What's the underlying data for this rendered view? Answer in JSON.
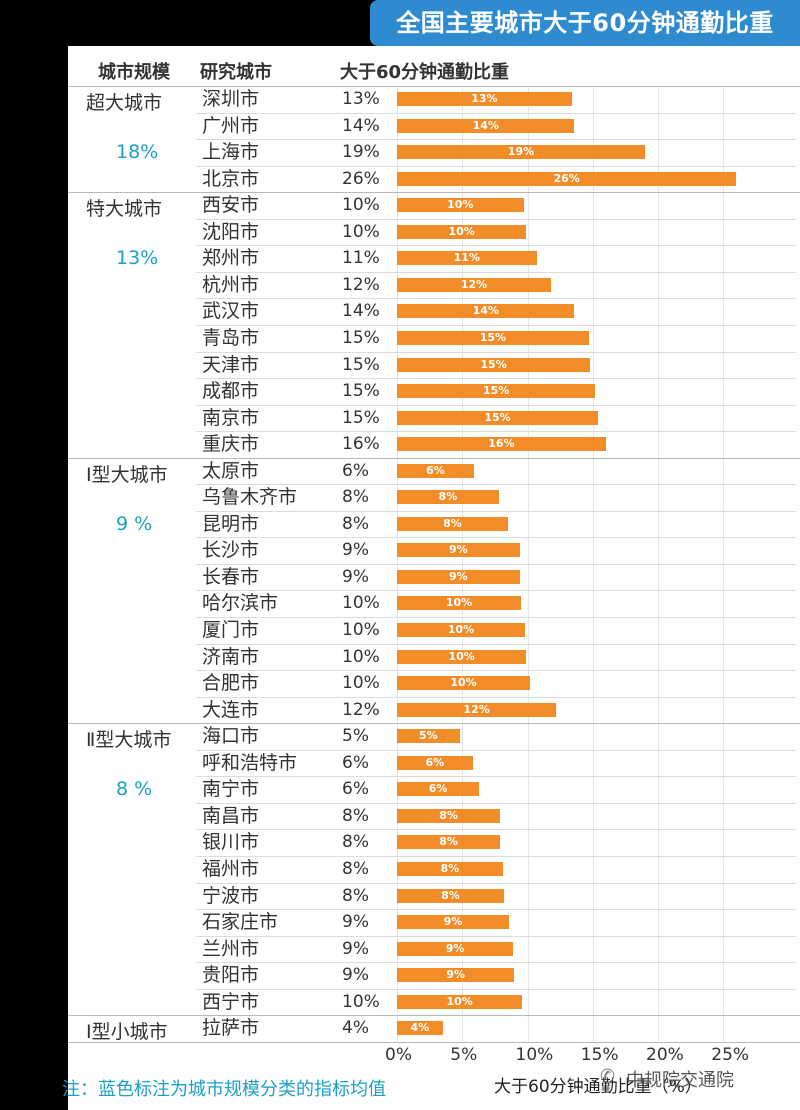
{
  "title": "全国主要城市大于60分钟通勤比重",
  "headers": {
    "scale": "城市规模",
    "city": "研究城市",
    "metric": "大于60分钟通勤比重"
  },
  "note": "注：蓝色标注为城市规模分类的指标均值",
  "watermark": "中规院交通院",
  "colors": {
    "bar": "#f28c28",
    "title_bg": "#2e8bcf",
    "avg_text": "#1aa0c8"
  },
  "chart_data": {
    "type": "bar",
    "orientation": "horizontal",
    "xlabel": "大于60分钟通勤比重（%）",
    "xlim": [
      0,
      27
    ],
    "xticks": [
      "0%",
      "5%",
      "10%",
      "15%",
      "20%",
      "25%"
    ],
    "xtick_values": [
      0,
      5,
      10,
      15,
      20,
      25
    ],
    "grid": true,
    "groups": [
      {
        "name": "超大城市",
        "avg": "18%",
        "cities": [
          {
            "city": "深圳市",
            "value": 13.4,
            "label": "13%"
          },
          {
            "city": "广州市",
            "value": 13.6,
            "label": "14%"
          },
          {
            "city": "上海市",
            "value": 19.0,
            "label": "19%"
          },
          {
            "city": "北京市",
            "value": 26.0,
            "label": "26%"
          }
        ]
      },
      {
        "name": "特大城市",
        "avg": "13%",
        "cities": [
          {
            "city": "西安市",
            "value": 9.7,
            "label": "10%"
          },
          {
            "city": "沈阳市",
            "value": 9.9,
            "label": "10%"
          },
          {
            "city": "郑州市",
            "value": 10.7,
            "label": "11%"
          },
          {
            "city": "杭州市",
            "value": 11.8,
            "label": "12%"
          },
          {
            "city": "武汉市",
            "value": 13.6,
            "label": "14%"
          },
          {
            "city": "青岛市",
            "value": 14.7,
            "label": "15%"
          },
          {
            "city": "天津市",
            "value": 14.8,
            "label": "15%"
          },
          {
            "city": "成都市",
            "value": 15.2,
            "label": "15%"
          },
          {
            "city": "南京市",
            "value": 15.4,
            "label": "15%"
          },
          {
            "city": "重庆市",
            "value": 16.0,
            "label": "16%"
          }
        ]
      },
      {
        "name": "Ⅰ型大城市",
        "avg": "9 %",
        "cities": [
          {
            "city": "太原市",
            "value": 5.9,
            "label": "6%"
          },
          {
            "city": "乌鲁木齐市",
            "value": 7.8,
            "label": "8%"
          },
          {
            "city": "昆明市",
            "value": 8.5,
            "label": "8%"
          },
          {
            "city": "长沙市",
            "value": 9.4,
            "label": "9%"
          },
          {
            "city": "长春市",
            "value": 9.4,
            "label": "9%"
          },
          {
            "city": "哈尔滨市",
            "value": 9.5,
            "label": "10%"
          },
          {
            "city": "厦门市",
            "value": 9.8,
            "label": "10%"
          },
          {
            "city": "济南市",
            "value": 9.9,
            "label": "10%"
          },
          {
            "city": "合肥市",
            "value": 10.2,
            "label": "10%"
          },
          {
            "city": "大连市",
            "value": 12.2,
            "label": "12%"
          }
        ]
      },
      {
        "name": "Ⅱ型大城市",
        "avg": "8 %",
        "cities": [
          {
            "city": "海口市",
            "value": 4.8,
            "label": "5%"
          },
          {
            "city": "呼和浩特市",
            "value": 5.8,
            "label": "6%"
          },
          {
            "city": "南宁市",
            "value": 6.3,
            "label": "6%"
          },
          {
            "city": "南昌市",
            "value": 7.9,
            "label": "8%"
          },
          {
            "city": "银川市",
            "value": 7.9,
            "label": "8%"
          },
          {
            "city": "福州市",
            "value": 8.1,
            "label": "8%"
          },
          {
            "city": "宁波市",
            "value": 8.2,
            "label": "8%"
          },
          {
            "city": "石家庄市",
            "value": 8.6,
            "label": "9%"
          },
          {
            "city": "兰州市",
            "value": 8.9,
            "label": "9%"
          },
          {
            "city": "贵阳市",
            "value": 9.0,
            "label": "9%"
          },
          {
            "city": "西宁市",
            "value": 9.6,
            "label": "10%"
          }
        ]
      },
      {
        "name": "Ⅰ型小城市",
        "avg": "",
        "cities": [
          {
            "city": "拉萨市",
            "value": 3.5,
            "label": "4%"
          }
        ]
      }
    ]
  }
}
